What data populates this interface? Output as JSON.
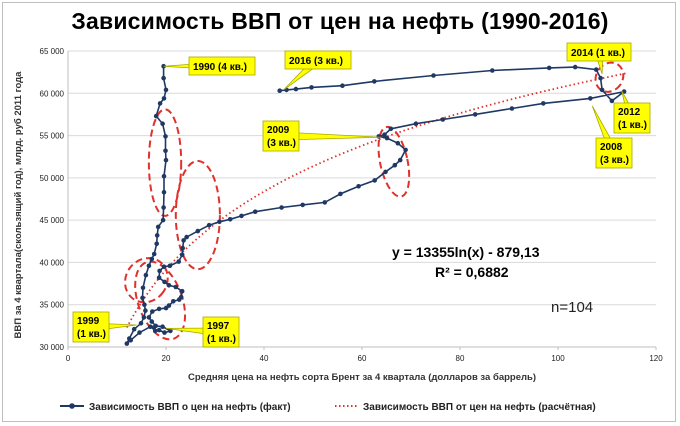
{
  "chart_data": {
    "type": "scatter",
    "title": "Зависимость ВВП от цен на нефть (1990-2016)",
    "xlabel": "Средняя цена на нефть сорта Брент за 4 квартала (долларов за баррель)",
    "ylabel": "ВВП за 4 квартала(скользящий год), млрд. руб 2011 года",
    "xlim": [
      0,
      120
    ],
    "ylim": [
      30000,
      65000
    ],
    "xticks": [
      0,
      20,
      40,
      60,
      80,
      100,
      120
    ],
    "yticks": [
      "30 000",
      "35 000",
      "40 000",
      "45 000",
      "50 000",
      "55 000",
      "60 000",
      "65 000"
    ],
    "grid": "horizontal",
    "legend_position": "bottom",
    "series": [
      {
        "name": "Зависимость ВВП о цен на нефть (факт)",
        "color": "#1f3864",
        "style": "line-markers",
        "points": [
          [
            19.5,
            63200
          ],
          [
            19.5,
            61800
          ],
          [
            20.0,
            60400
          ],
          [
            19.6,
            59400
          ],
          [
            18.8,
            58800
          ],
          [
            18.0,
            57300
          ],
          [
            19.3,
            56400
          ],
          [
            19.9,
            54900
          ],
          [
            19.9,
            53200
          ],
          [
            20.0,
            52100
          ],
          [
            19.6,
            50200
          ],
          [
            19.6,
            48300
          ],
          [
            19.5,
            46500
          ],
          [
            19.4,
            45000
          ],
          [
            18.4,
            44200
          ],
          [
            18.2,
            43200
          ],
          [
            18.1,
            42200
          ],
          [
            17.6,
            41000
          ],
          [
            17.1,
            40400
          ],
          [
            16.5,
            39600
          ],
          [
            15.9,
            38500
          ],
          [
            15.3,
            37000
          ],
          [
            15.2,
            35800
          ],
          [
            15.6,
            35000
          ],
          [
            15.8,
            34300
          ],
          [
            15.5,
            33500
          ],
          [
            14.9,
            32800
          ],
          [
            13.5,
            32100
          ],
          [
            12.5,
            31000
          ],
          [
            12.0,
            30400
          ],
          [
            12.8,
            30800
          ],
          [
            14.6,
            31700
          ],
          [
            16.8,
            32400
          ],
          [
            17.5,
            32300
          ],
          [
            17.8,
            31900
          ],
          [
            18.6,
            32000
          ],
          [
            19.7,
            31700
          ],
          [
            20.9,
            31900
          ],
          [
            19.3,
            32400
          ],
          [
            17.9,
            32500
          ],
          [
            17.1,
            33000
          ],
          [
            16.5,
            33500
          ],
          [
            17.2,
            34200
          ],
          [
            18.6,
            34500
          ],
          [
            20.0,
            34600
          ],
          [
            20.6,
            34900
          ],
          [
            21.5,
            35400
          ],
          [
            22.7,
            35600
          ],
          [
            23.1,
            35900
          ],
          [
            23.3,
            36600
          ],
          [
            22.0,
            37100
          ],
          [
            20.6,
            37300
          ],
          [
            19.7,
            37700
          ],
          [
            18.6,
            38200
          ],
          [
            18.7,
            39000
          ],
          [
            19.6,
            39500
          ],
          [
            20.8,
            39600
          ],
          [
            22.6,
            40100
          ],
          [
            23.3,
            40900
          ],
          [
            23.4,
            41700
          ],
          [
            23.6,
            42600
          ],
          [
            24.2,
            43000
          ],
          [
            26.5,
            43700
          ],
          [
            28.8,
            44400
          ],
          [
            30.9,
            44800
          ],
          [
            33.1,
            45100
          ],
          [
            35.4,
            45500
          ],
          [
            38.2,
            46000
          ],
          [
            43.6,
            46500
          ],
          [
            47.9,
            46800
          ],
          [
            52.4,
            47100
          ],
          [
            55.6,
            48100
          ],
          [
            59.3,
            49000
          ],
          [
            62.6,
            49700
          ],
          [
            64.8,
            50700
          ],
          [
            66.7,
            51500
          ],
          [
            67.8,
            52100
          ],
          [
            68.9,
            53300
          ],
          [
            67.3,
            54100
          ],
          [
            65.1,
            54700
          ],
          [
            63.4,
            54900
          ],
          [
            64.6,
            55100
          ],
          [
            65.9,
            55800
          ],
          [
            71.0,
            56400
          ],
          [
            76.5,
            56900
          ],
          [
            83.1,
            57500
          ],
          [
            90.6,
            58200
          ],
          [
            97.0,
            58800
          ],
          [
            106.6,
            59400
          ],
          [
            113.5,
            60200
          ],
          [
            111.0,
            59100
          ],
          [
            109.0,
            60400
          ],
          [
            108.7,
            61800
          ],
          [
            107.8,
            62800
          ],
          [
            103.5,
            63100
          ],
          [
            98.2,
            63000
          ],
          [
            86.6,
            62700
          ],
          [
            74.6,
            62100
          ],
          [
            62.5,
            61400
          ],
          [
            56.0,
            60900
          ],
          [
            49.7,
            60700
          ],
          [
            46.5,
            60500
          ],
          [
            44.6,
            60400
          ],
          [
            43.2,
            60300
          ]
        ]
      },
      {
        "name": "Зависимость ВВП от цен на нефть (расчётная)",
        "color": "#e0312c",
        "style": "dotted",
        "equation": "y = 13355ln(x) - 879,13",
        "r2": "R² = 0,6882",
        "x_range": [
          12,
          114
        ]
      }
    ],
    "annotations": [
      {
        "label": "1990 (4 кв.)",
        "x": 19.5,
        "y": 63200
      },
      {
        "label": "2016 (3 кв.)",
        "x": 44,
        "y": 60400
      },
      {
        "label": "2014 (1 кв.)",
        "x": 109,
        "y": 62300
      },
      {
        "label": "2012 (1 кв.)",
        "x": 113,
        "y": 60300
      },
      {
        "label": "2009 (3 кв.)",
        "x": 64,
        "y": 54800
      },
      {
        "label": "2008 (3 кв.)",
        "x": 107,
        "y": 58500
      },
      {
        "label": "1999 (1 кв.)",
        "x": 14,
        "y": 32600
      },
      {
        "label": "1997 (1 кв.)",
        "x": 20,
        "y": 32200
      }
    ],
    "n_label": "n=104"
  }
}
